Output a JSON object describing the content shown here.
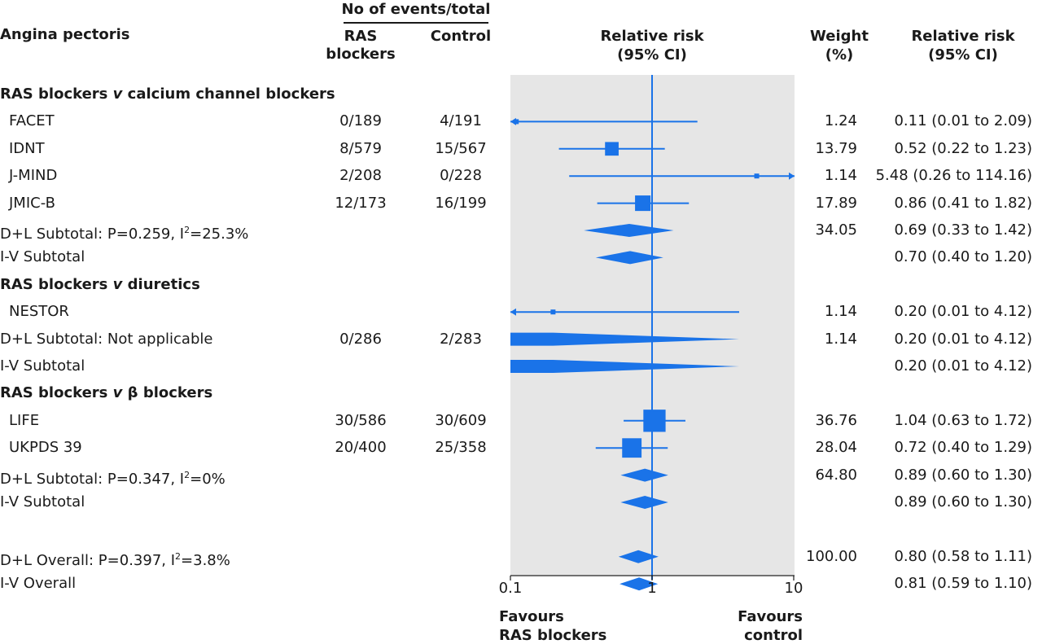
{
  "headers": {
    "outcome": "Angina pectoris",
    "events_group": "No of events/total",
    "ras_col": [
      "RAS",
      "blockers"
    ],
    "control_col": "Control",
    "rr_plot": [
      "Relative risk",
      "(95% CI)"
    ],
    "weight": [
      "Weight",
      "(%)"
    ],
    "rr_text": [
      "Relative risk",
      "(95% CI)"
    ]
  },
  "rows": [
    {
      "label": "RAS blockers v calcium channel blockers",
      "kind": "group",
      "label_parts": [
        "RAS blockers ",
        "v",
        " calcium channel blockers"
      ]
    },
    {
      "label": "FACET",
      "kind": "study",
      "ras": "0/189",
      "control": "4/191",
      "weight": "1.24",
      "rr_text": "0.11 (0.01 to 2.09)",
      "rr": 0.11,
      "lo": 0.01,
      "hi": 2.09,
      "w": 1.24
    },
    {
      "label": "IDNT",
      "kind": "study",
      "ras": "8/579",
      "control": "15/567",
      "weight": "13.79",
      "rr_text": "0.52 (0.22 to 1.23)",
      "rr": 0.52,
      "lo": 0.22,
      "hi": 1.23,
      "w": 13.79
    },
    {
      "label": "J-MIND",
      "kind": "study",
      "ras": "2/208",
      "control": "0/228",
      "weight": "1.14",
      "rr_text": "5.48 (0.26 to 114.16)",
      "rr": 5.48,
      "lo": 0.26,
      "hi": 114.16,
      "w": 1.14
    },
    {
      "label": "JMIC-B",
      "kind": "study",
      "ras": "12/173",
      "control": "16/199",
      "weight": "17.89",
      "rr_text": "0.86 (0.41 to 1.82)",
      "rr": 0.86,
      "lo": 0.41,
      "hi": 1.82,
      "w": 17.89
    },
    {
      "label": "D+L Subtotal: P=0.259, I2=25.3%",
      "kind": "summary",
      "label_parts": [
        "D+L Subtotal: P=0.259, I",
        "2",
        "=25.3%"
      ],
      "weight": "34.05",
      "rr_text": "0.69 (0.33 to 1.42)",
      "rr": 0.69,
      "lo": 0.33,
      "hi": 1.42
    },
    {
      "label": "I-V Subtotal",
      "kind": "summary",
      "rr_text": "0.70 (0.40 to 1.20)",
      "rr": 0.7,
      "lo": 0.4,
      "hi": 1.2
    },
    {
      "label": "RAS blockers v diuretics",
      "kind": "group",
      "label_parts": [
        "RAS blockers ",
        "v",
        " diuretics"
      ]
    },
    {
      "label": "NESTOR",
      "kind": "study",
      "weight": "1.14",
      "rr_text": "0.20 (0.01 to 4.12)",
      "rr": 0.2,
      "lo": 0.01,
      "hi": 4.12,
      "w": 1.14
    },
    {
      "label": "D+L Subtotal: Not applicable",
      "kind": "summary",
      "ras": "0/286",
      "control": "2/283",
      "weight": "1.14",
      "rr_text": "0.20 (0.01 to 4.12)",
      "rr": 0.2,
      "lo": 0.01,
      "hi": 4.12
    },
    {
      "label": "I-V Subtotal",
      "kind": "summary",
      "rr_text": "0.20 (0.01 to 4.12)",
      "rr": 0.2,
      "lo": 0.01,
      "hi": 4.12
    },
    {
      "label": "RAS blockers v β blockers",
      "kind": "group",
      "label_parts": [
        "RAS blockers ",
        "v",
        " β blockers"
      ]
    },
    {
      "label": "LIFE",
      "kind": "study",
      "ras": "30/586",
      "control": "30/609",
      "weight": "36.76",
      "rr_text": "1.04 (0.63 to 1.72)",
      "rr": 1.04,
      "lo": 0.63,
      "hi": 1.72,
      "w": 36.76
    },
    {
      "label": "UKPDS 39",
      "kind": "study",
      "ras": "20/400",
      "control": "25/358",
      "weight": "28.04",
      "rr_text": "0.72 (0.40 to 1.29)",
      "rr": 0.72,
      "lo": 0.4,
      "hi": 1.29,
      "w": 28.04
    },
    {
      "label": "D+L Subtotal: P=0.347, I2=0%",
      "kind": "summary",
      "label_parts": [
        "D+L Subtotal: P=0.347, I",
        "2",
        "=0%"
      ],
      "weight": "64.80",
      "rr_text": "0.89 (0.60 to 1.30)",
      "rr": 0.89,
      "lo": 0.6,
      "hi": 1.3
    },
    {
      "label": "I-V Subtotal",
      "kind": "summary",
      "rr_text": "0.89 (0.60 to 1.30)",
      "rr": 0.89,
      "lo": 0.6,
      "hi": 1.3
    },
    {
      "label": "",
      "kind": "spacer"
    },
    {
      "label": "D+L Overall: P=0.397, I2=3.8%",
      "kind": "summary",
      "label_parts": [
        "D+L Overall: P=0.397, I",
        "2",
        "=3.8%"
      ],
      "weight": "100.00",
      "rr_text": "0.80 (0.58 to 1.11)",
      "rr": 0.8,
      "lo": 0.58,
      "hi": 1.11
    },
    {
      "label": "I-V Overall",
      "kind": "summary",
      "rr_text": "0.81 (0.59 to 1.10)",
      "rr": 0.81,
      "lo": 0.59,
      "hi": 1.1
    }
  ],
  "axis": {
    "ticks": [
      "0.1",
      "1",
      "10"
    ],
    "favours_left": [
      "Favours",
      "RAS blockers"
    ],
    "favours_right": [
      "Favours",
      "control"
    ]
  },
  "colors": {
    "mark": "#1a73e8",
    "panel": "#e6e6e6",
    "text": "#1a1a1a"
  },
  "chart_data": {
    "type": "forest",
    "scale": "log",
    "xlim": [
      0.1,
      10
    ],
    "reference_line": 1,
    "studies": [
      {
        "name": "FACET",
        "group": "RAS blockers v calcium channel blockers",
        "rr": 0.11,
        "lo": 0.01,
        "hi": 2.09,
        "weight": 1.24,
        "ras": "0/189",
        "control": "4/191"
      },
      {
        "name": "IDNT",
        "group": "RAS blockers v calcium channel blockers",
        "rr": 0.52,
        "lo": 0.22,
        "hi": 1.23,
        "weight": 13.79,
        "ras": "8/579",
        "control": "15/567"
      },
      {
        "name": "J-MIND",
        "group": "RAS blockers v calcium channel blockers",
        "rr": 5.48,
        "lo": 0.26,
        "hi": 114.16,
        "weight": 1.14,
        "ras": "2/208",
        "control": "0/228"
      },
      {
        "name": "JMIC-B",
        "group": "RAS blockers v calcium channel blockers",
        "rr": 0.86,
        "lo": 0.41,
        "hi": 1.82,
        "weight": 17.89,
        "ras": "12/173",
        "control": "16/199"
      },
      {
        "name": "NESTOR",
        "group": "RAS blockers v diuretics",
        "rr": 0.2,
        "lo": 0.01,
        "hi": 4.12,
        "weight": 1.14
      },
      {
        "name": "LIFE",
        "group": "RAS blockers v β blockers",
        "rr": 1.04,
        "lo": 0.63,
        "hi": 1.72,
        "weight": 36.76,
        "ras": "30/586",
        "control": "30/609"
      },
      {
        "name": "UKPDS 39",
        "group": "RAS blockers v β blockers",
        "rr": 0.72,
        "lo": 0.4,
        "hi": 1.29,
        "weight": 28.04,
        "ras": "20/400",
        "control": "25/358"
      }
    ],
    "summaries": [
      {
        "name": "D+L Subtotal: P=0.259, I2=25.3%",
        "rr": 0.69,
        "lo": 0.33,
        "hi": 1.42,
        "weight": 34.05
      },
      {
        "name": "I-V Subtotal",
        "rr": 0.7,
        "lo": 0.4,
        "hi": 1.2
      },
      {
        "name": "D+L Subtotal: Not applicable",
        "rr": 0.2,
        "lo": 0.01,
        "hi": 4.12,
        "weight": 1.14,
        "ras": "0/286",
        "control": "2/283"
      },
      {
        "name": "I-V Subtotal",
        "rr": 0.2,
        "lo": 0.01,
        "hi": 4.12
      },
      {
        "name": "D+L Subtotal: P=0.347, I2=0%",
        "rr": 0.89,
        "lo": 0.6,
        "hi": 1.3,
        "weight": 64.8
      },
      {
        "name": "I-V Subtotal",
        "rr": 0.89,
        "lo": 0.6,
        "hi": 1.3
      },
      {
        "name": "D+L Overall: P=0.397, I2=3.8%",
        "rr": 0.8,
        "lo": 0.58,
        "hi": 1.11,
        "weight": 100.0
      },
      {
        "name": "I-V Overall",
        "rr": 0.81,
        "lo": 0.59,
        "hi": 1.1
      }
    ]
  }
}
